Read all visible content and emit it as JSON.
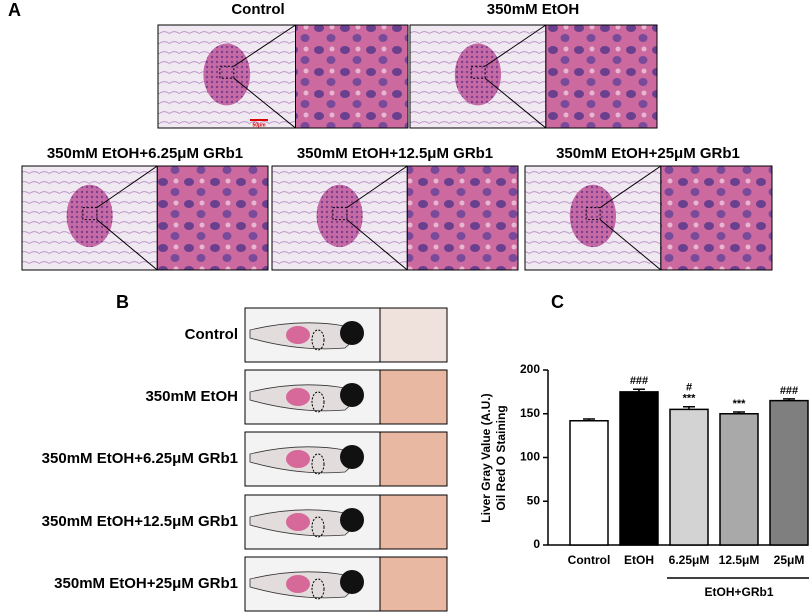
{
  "panel_a": {
    "label": "A",
    "scale_bar": "50μm",
    "images": [
      "Control",
      "350mM EtOH",
      "350mM EtOH+6.25μM GRb1",
      "350mM EtOH+12.5μM GRb1",
      "350mM EtOH+25μM GRb1"
    ]
  },
  "panel_b": {
    "label": "B",
    "images": [
      "Control",
      "350mM EtOH",
      "350mM EtOH+6.25μM GRb1",
      "350mM EtOH+12.5μM GRb1",
      "350mM EtOH+25μM GRb1"
    ]
  },
  "chart_data": {
    "type": "bar",
    "panel_label": "C",
    "y_label": [
      "Liver Gray Value (A.U.)",
      "Oil Red O Staining"
    ],
    "categories": [
      "Control",
      "EtOH",
      "6.25μM",
      "12.5μM",
      "25μM"
    ],
    "values": [
      142,
      175,
      155,
      150,
      165
    ],
    "errors": [
      2,
      3,
      3,
      2,
      2
    ],
    "colors": [
      "#ffffff",
      "#000000",
      "#d3d3d3",
      "#a9a9a9",
      "#7f7f7f"
    ],
    "ylim": [
      0,
      200
    ],
    "yticks": [
      0,
      50,
      100,
      150,
      200
    ],
    "annotations": [
      {
        "category": "EtOH",
        "text": "###"
      },
      {
        "category": "6.25μM",
        "text": "***"
      },
      {
        "category": "6.25μM",
        "text": "#"
      },
      {
        "category": "12.5μM",
        "text": "***"
      },
      {
        "category": "25μM",
        "text": "###"
      }
    ],
    "group_label": "EtOH+GRb1"
  }
}
